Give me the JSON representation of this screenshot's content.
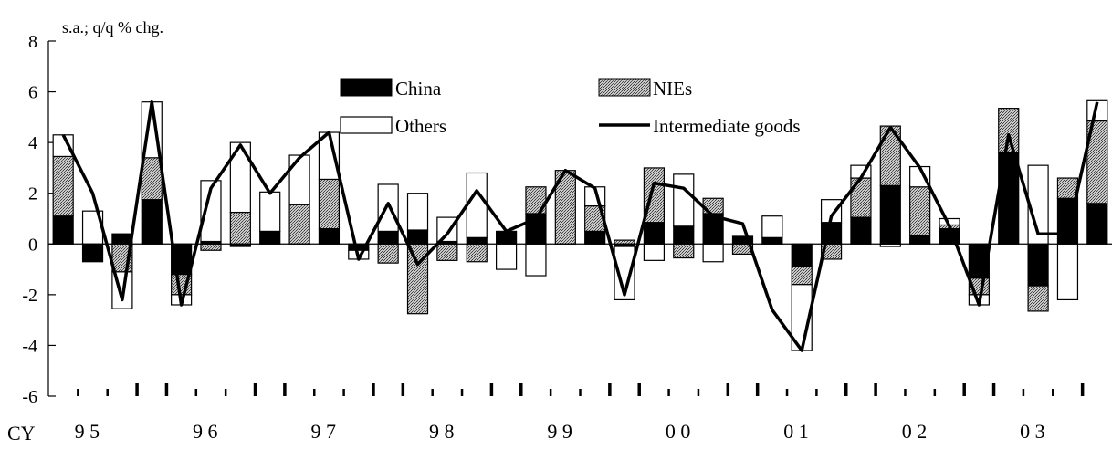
{
  "chart_data": {
    "type": "bar",
    "stacked": true,
    "unit_label": "s.a.; q/q % chg.",
    "x_prefix": "CY",
    "x_year_labels": [
      "9 5",
      "9 6",
      "9 7",
      "9 8",
      "9 9",
      "0 0",
      "0 1",
      "0 2",
      "0 3"
    ],
    "ylim": [
      -6,
      8
    ],
    "y_ticks": [
      -6,
      -4,
      -2,
      0,
      2,
      4,
      6,
      8
    ],
    "y_tick_labels": [
      "-6",
      "-4",
      "-2",
      "0",
      "2",
      "4",
      "6",
      "8"
    ],
    "grid": false,
    "legend_position": "top (inside plot)",
    "colors": {
      "china": "#000000",
      "nies": "#9a9a9a",
      "others": "#ffffff",
      "line": "#000000"
    },
    "series": [
      {
        "name": "China",
        "values": [
          1.1,
          -0.7,
          0.4,
          1.75,
          -1.2,
          0.1,
          -0.1,
          0.5,
          0.0,
          0.6,
          -0.25,
          0.5,
          0.55,
          0.1,
          0.25,
          0.5,
          1.2,
          0.0,
          0.5,
          -0.1,
          0.85,
          0.7,
          1.2,
          0.3,
          0.25,
          -0.9,
          0.85,
          1.05,
          2.3,
          0.35,
          0.6,
          -1.35,
          3.6,
          -1.65,
          1.8,
          1.6
        ]
      },
      {
        "name": "NIEs",
        "values": [
          2.35,
          0.0,
          -1.1,
          1.65,
          -0.8,
          -0.25,
          1.25,
          0.0,
          1.55,
          1.95,
          0.0,
          -0.75,
          -2.75,
          -0.65,
          -0.7,
          0.0,
          1.05,
          2.9,
          1.0,
          0.15,
          2.15,
          -0.55,
          0.6,
          -0.4,
          0.0,
          -0.7,
          -0.6,
          1.55,
          2.35,
          1.9,
          0.15,
          -0.65,
          1.75,
          -1.0,
          0.8,
          3.25
        ]
      },
      {
        "name": "Others",
        "values": [
          0.85,
          1.3,
          -1.45,
          2.2,
          -0.4,
          2.4,
          2.75,
          1.55,
          1.95,
          1.85,
          -0.35,
          1.85,
          1.45,
          0.95,
          2.55,
          -1.0,
          -1.25,
          0.0,
          0.75,
          -2.1,
          -0.65,
          2.05,
          -0.7,
          0.0,
          0.85,
          -2.6,
          0.9,
          0.5,
          -0.1,
          0.8,
          0.25,
          -0.4,
          0.0,
          3.1,
          -2.2,
          0.8
        ]
      },
      {
        "name": "Intermediate goods",
        "type": "line",
        "values": [
          4.3,
          2.0,
          -2.2,
          5.6,
          -2.4,
          2.2,
          3.9,
          2.0,
          3.4,
          4.4,
          -0.6,
          1.6,
          -0.8,
          0.4,
          2.1,
          0.5,
          1.0,
          2.9,
          2.2,
          -2.0,
          2.4,
          2.2,
          1.1,
          0.8,
          -2.6,
          -4.2,
          1.1,
          2.6,
          4.6,
          3.0,
          0.7,
          -2.4,
          4.3,
          0.4,
          0.4,
          5.6
        ]
      }
    ]
  }
}
